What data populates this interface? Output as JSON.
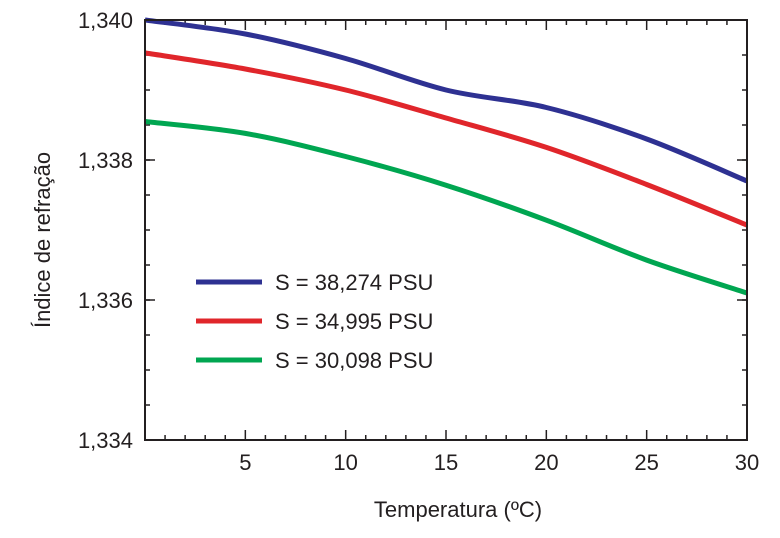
{
  "chart_data": {
    "type": "line",
    "xlabel": "Temperatura (ºC)",
    "ylabel": "Índice de refração",
    "xlim": [
      0,
      30
    ],
    "ylim": [
      1.334,
      1.34
    ],
    "x_ticks": [
      5,
      10,
      15,
      20,
      25,
      30
    ],
    "x_tick_labels": [
      "5",
      "10",
      "15",
      "20",
      "25",
      "30"
    ],
    "y_ticks": [
      1.334,
      1.336,
      1.338,
      1.34
    ],
    "y_tick_labels": [
      "1,334",
      "1,336",
      "1,338",
      "1,340"
    ],
    "grid": false,
    "legend_position": "lower-left",
    "series": [
      {
        "name": "S = 38,274 PSU",
        "color": "#2e3192",
        "x": [
          0,
          5,
          10,
          15,
          20,
          25,
          30
        ],
        "y": [
          1.34,
          1.3398,
          1.33945,
          1.339,
          1.33875,
          1.3383,
          1.3377
        ]
      },
      {
        "name": "S = 34,995 PSU",
        "color": "#e0262b",
        "x": [
          0,
          5,
          10,
          15,
          20,
          25,
          30
        ],
        "y": [
          1.33953,
          1.3393,
          1.339,
          1.3386,
          1.33818,
          1.33765,
          1.33707
        ]
      },
      {
        "name": "S = 30,098 PSU",
        "color": "#00a651",
        "x": [
          0,
          5,
          10,
          15,
          20,
          25,
          30
        ],
        "y": [
          1.33855,
          1.33838,
          1.33805,
          1.33764,
          1.33714,
          1.33657,
          1.3361
        ]
      }
    ]
  }
}
